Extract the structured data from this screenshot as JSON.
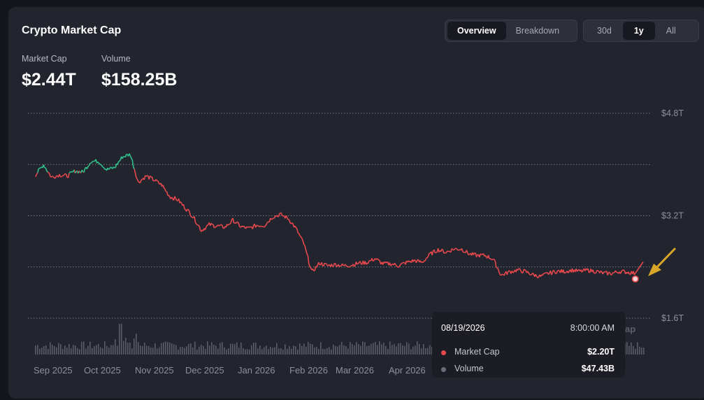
{
  "title": "Crypto Market Cap",
  "view_toggle": {
    "options": [
      "Overview",
      "Breakdown"
    ],
    "selected": "Overview"
  },
  "range_toggle": {
    "options": [
      "30d",
      "1y",
      "All"
    ],
    "selected": "1y"
  },
  "stats": [
    {
      "label": "Market Cap",
      "value": "$2.44T"
    },
    {
      "label": "Volume",
      "value": "$158.25B"
    }
  ],
  "tooltip": {
    "date": "08/19/2026",
    "time": "8:00:00 AM",
    "rows": [
      {
        "name": "Market Cap",
        "value": "$2.20T",
        "color": "#e5484d"
      },
      {
        "name": "Volume",
        "value": "$47.43B",
        "color": "#6b6e7a"
      }
    ]
  },
  "partial_label": "ap",
  "colors": {
    "up": "#2fbf8a",
    "down": "#e5484d",
    "volume": "#5a5c66",
    "arrow": "#d9a62a"
  },
  "chart_data": {
    "type": "line",
    "y_ticks": [
      "$4.8T",
      "$3.2T",
      "$1.6T"
    ],
    "y_axis_position": "right",
    "ylim_T": [
      1.6,
      4.8
    ],
    "grid": true,
    "x_tick_labels": [
      "Sep 2025",
      "Oct 2025",
      "Nov 2025",
      "Dec 2025",
      "Jan 2026",
      "Feb 2026",
      "Mar 2026",
      "Apr 2026"
    ],
    "market_cap_T": [
      [
        0,
        3.84
      ],
      [
        0.5,
        4.0
      ],
      [
        1,
        3.8
      ],
      [
        1.5,
        3.84
      ],
      [
        2,
        3.82
      ],
      [
        2.5,
        3.9
      ],
      [
        3,
        3.88
      ],
      [
        3.5,
        4.05
      ],
      [
        4,
        4.05
      ],
      [
        4.5,
        3.92
      ],
      [
        5,
        3.95
      ],
      [
        5.5,
        4.12
      ],
      [
        6,
        4.16
      ],
      [
        6.5,
        3.72
      ],
      [
        7,
        3.82
      ],
      [
        7.5,
        3.76
      ],
      [
        8,
        3.68
      ],
      [
        8.5,
        3.5
      ],
      [
        9,
        3.45
      ],
      [
        9.5,
        3.32
      ],
      [
        10,
        3.18
      ],
      [
        10.5,
        2.97
      ],
      [
        11,
        3.06
      ],
      [
        11.5,
        3.04
      ],
      [
        12,
        3.02
      ],
      [
        12.5,
        3.13
      ],
      [
        13,
        3.03
      ],
      [
        13.5,
        3.0
      ],
      [
        14,
        3.05
      ],
      [
        14.5,
        3.05
      ],
      [
        15,
        3.18
      ],
      [
        15.5,
        3.22
      ],
      [
        16,
        3.16
      ],
      [
        16.5,
        3.0
      ],
      [
        17,
        2.76
      ],
      [
        17.5,
        2.32
      ],
      [
        18,
        2.46
      ],
      [
        18.5,
        2.42
      ],
      [
        19,
        2.44
      ],
      [
        19.5,
        2.42
      ],
      [
        20,
        2.43
      ],
      [
        20.5,
        2.46
      ],
      [
        21,
        2.47
      ],
      [
        21.5,
        2.53
      ],
      [
        22,
        2.45
      ],
      [
        22.5,
        2.45
      ],
      [
        23,
        2.42
      ],
      [
        23.5,
        2.47
      ],
      [
        24,
        2.5
      ],
      [
        24.5,
        2.47
      ],
      [
        25,
        2.6
      ],
      [
        25.5,
        2.67
      ],
      [
        26,
        2.63
      ],
      [
        26.5,
        2.68
      ],
      [
        27,
        2.68
      ],
      [
        27.5,
        2.6
      ],
      [
        28,
        2.58
      ],
      [
        28.5,
        2.58
      ],
      [
        29,
        2.52
      ],
      [
        29.5,
        2.27
      ],
      [
        30,
        2.32
      ],
      [
        30.5,
        2.35
      ],
      [
        31,
        2.33
      ],
      [
        31.5,
        2.28
      ],
      [
        32,
        2.25
      ],
      [
        32.5,
        2.3
      ],
      [
        33,
        2.33
      ],
      [
        33.5,
        2.33
      ],
      [
        34,
        2.35
      ],
      [
        34.5,
        2.33
      ],
      [
        35,
        2.35
      ],
      [
        35.5,
        2.33
      ],
      [
        36,
        2.3
      ],
      [
        36.5,
        2.3
      ],
      [
        37,
        2.33
      ],
      [
        37.5,
        2.32
      ],
      [
        38,
        2.3
      ],
      [
        38.5,
        2.48
      ]
    ],
    "green_until_index": 14,
    "selected_point": {
      "date": "08/19/2026",
      "value_T": 2.2
    }
  }
}
